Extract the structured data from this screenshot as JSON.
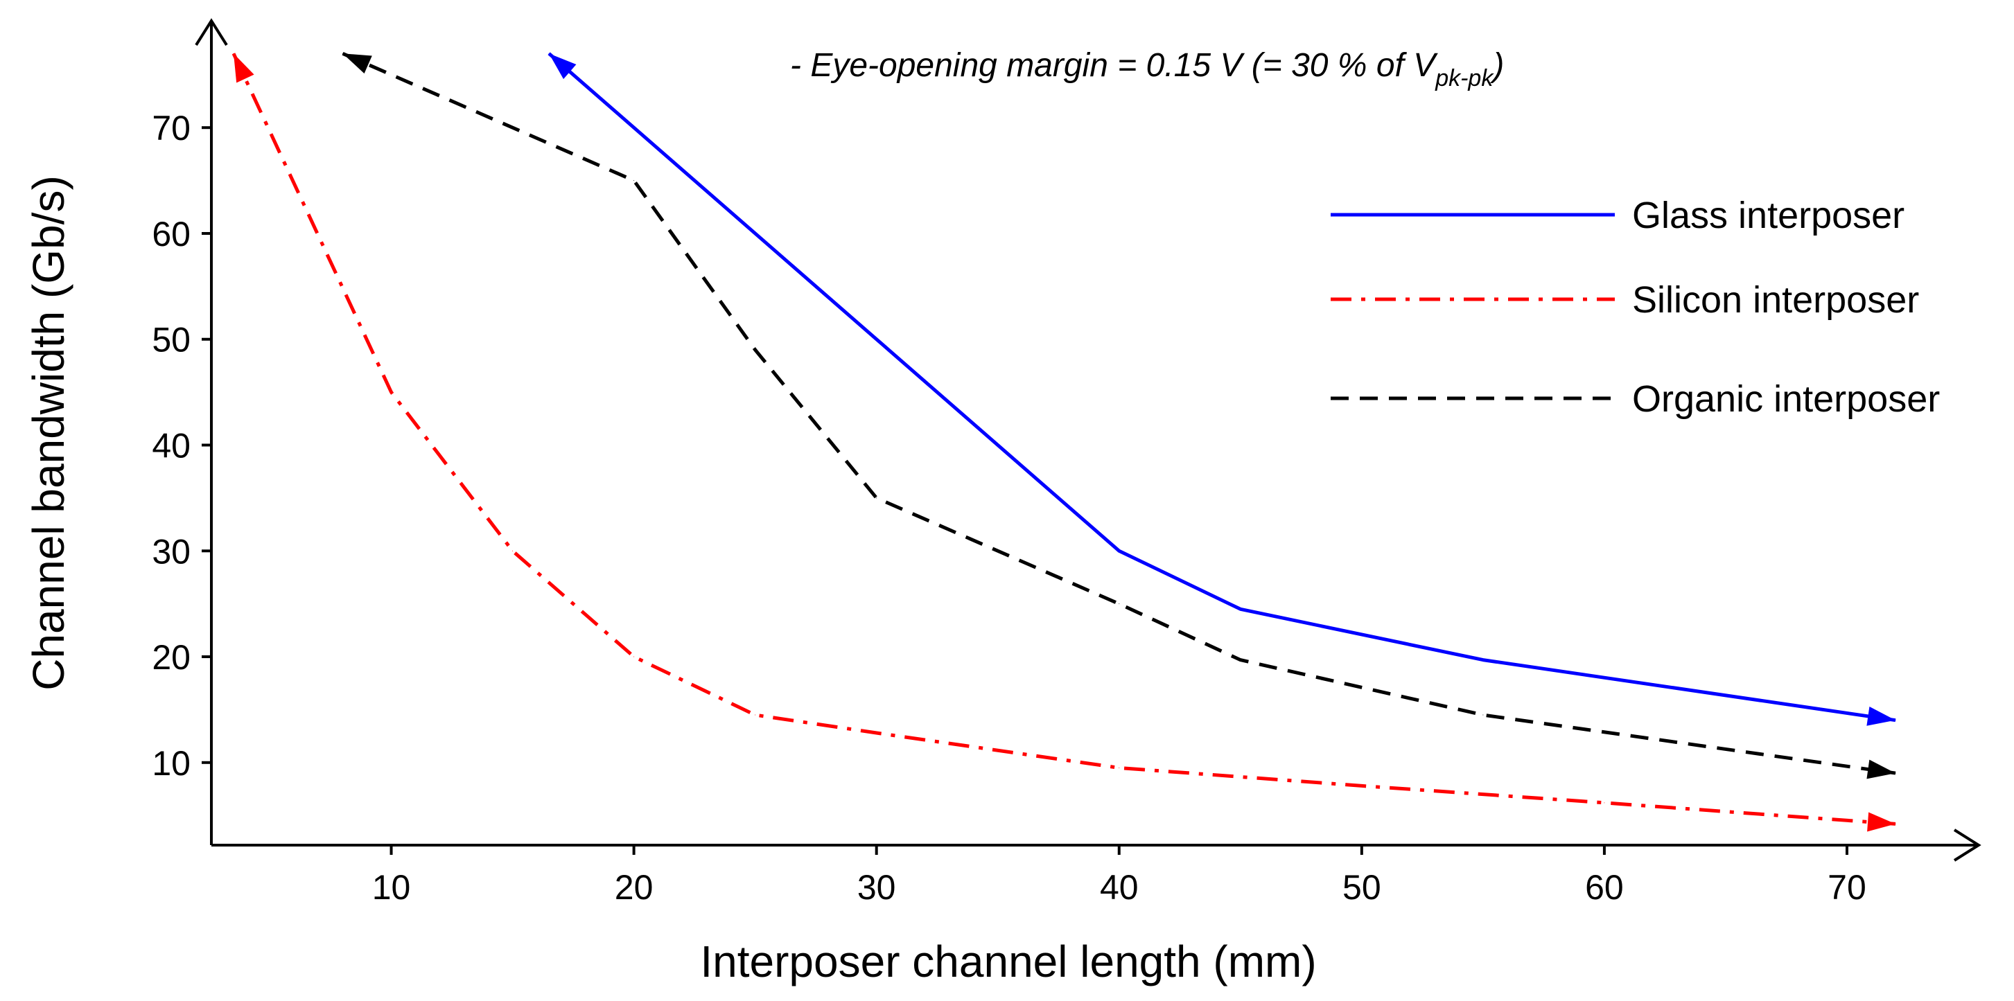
{
  "chart_data": {
    "type": "line",
    "title": "",
    "annotation": {
      "prefix": "- Eye-opening margin = 0.15 V (= 30 % of V",
      "subscript": "pk-pk",
      "suffix": ")"
    },
    "xlabel": "Interposer channel length (mm)",
    "ylabel": "Channel bandwidth (Gb/s)",
    "xlim": [
      2.5,
      73
    ],
    "ylim": [
      2,
      78
    ],
    "xticks": [
      10,
      20,
      30,
      40,
      50,
      60,
      70
    ],
    "yticks": [
      10,
      20,
      30,
      40,
      50,
      60,
      70
    ],
    "grid": false,
    "legend_position": "top-right",
    "series": [
      {
        "name": "Glass interposer",
        "color": "#0000ff",
        "style": "solid",
        "x": [
          16.5,
          30,
          40,
          45,
          55,
          72
        ],
        "y": [
          77,
          50,
          30,
          24.5,
          19.7,
          14
        ]
      },
      {
        "name": "Silicon interposer",
        "color": "#ff0000",
        "style": "dash-dot",
        "x": [
          3.5,
          10,
          15,
          20,
          25,
          30,
          40,
          50,
          60,
          72
        ],
        "y": [
          77,
          45,
          30,
          20,
          14.5,
          12.8,
          9.5,
          7.8,
          6.2,
          4.2
        ]
      },
      {
        "name": "Organic interposer",
        "color": "#000000",
        "style": "dashed",
        "x": [
          8,
          20,
          25,
          30,
          40,
          45,
          55,
          72
        ],
        "y": [
          77,
          65,
          49,
          35,
          25,
          19.7,
          14.5,
          9
        ]
      }
    ]
  }
}
